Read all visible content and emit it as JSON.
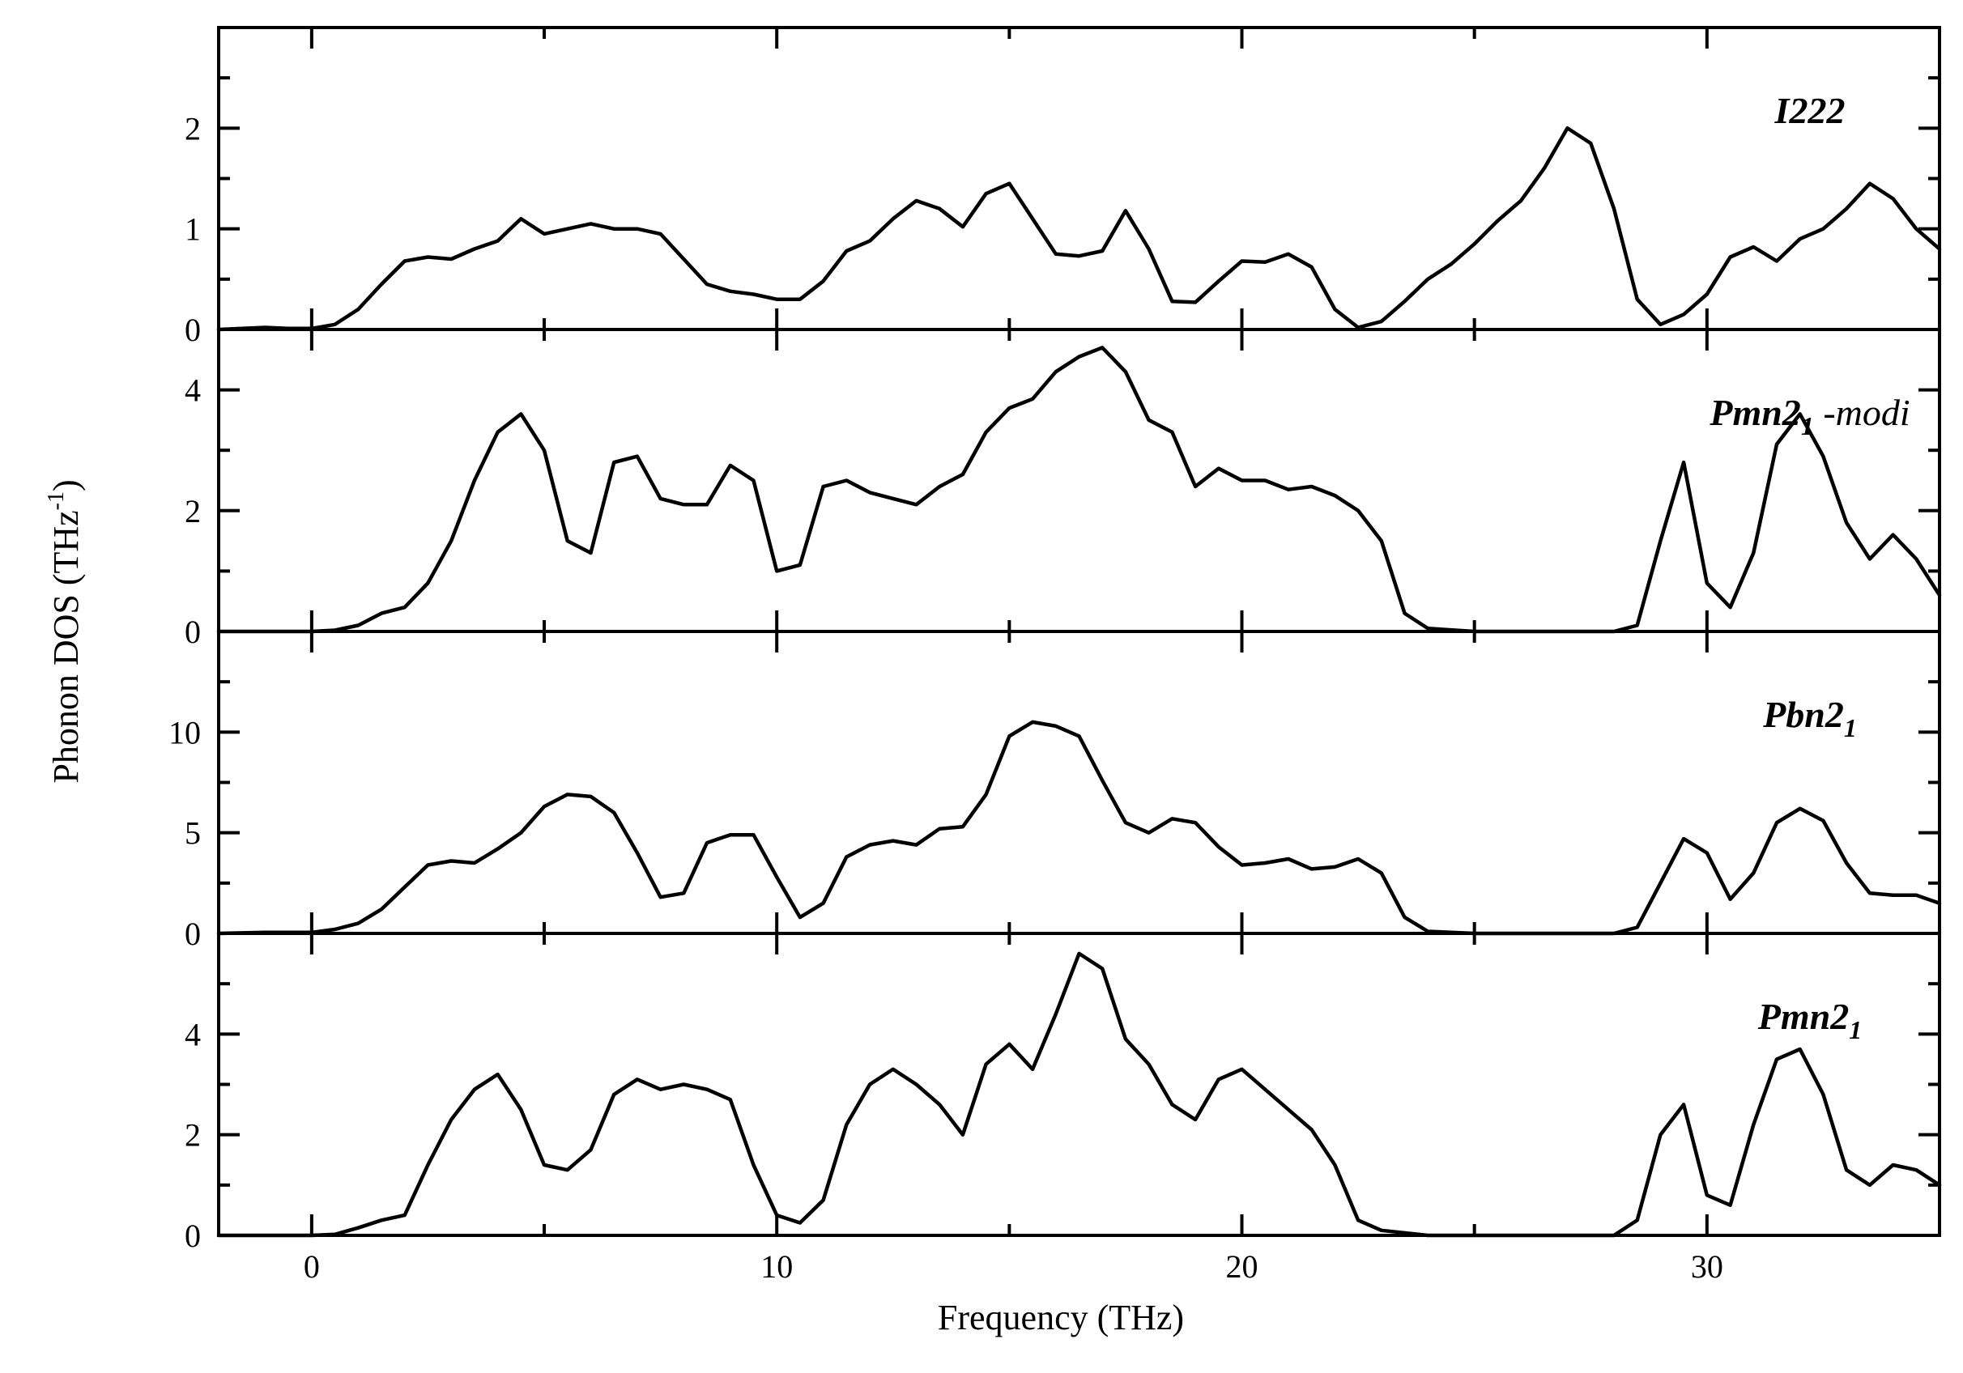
{
  "chart_data": {
    "type": "line",
    "xlabel": "Frequency (THz)",
    "ylabel_main": "Phonon DOS (THz",
    "ylabel_sup": "-1",
    "ylabel_close": ")",
    "xlim": [
      -2,
      35
    ],
    "xticks": [
      0,
      10,
      20,
      30
    ],
    "xtick_labels": [
      "0",
      "10",
      "20",
      "30"
    ],
    "panels": [
      {
        "name_main": "I222",
        "name_sub": "",
        "name_tail": "",
        "ylim": [
          0,
          3
        ],
        "yticks": [
          0,
          1,
          2
        ],
        "ytick_labels": [
          "0",
          "1",
          "2"
        ],
        "points": [
          [
            -2,
            0
          ],
          [
            -1.5,
            0.01
          ],
          [
            -1,
            0.02
          ],
          [
            -0.5,
            0.01
          ],
          [
            0,
            0.01
          ],
          [
            0.5,
            0.05
          ],
          [
            1,
            0.2
          ],
          [
            1.5,
            0.45
          ],
          [
            2,
            0.68
          ],
          [
            2.5,
            0.72
          ],
          [
            3,
            0.7
          ],
          [
            3.5,
            0.8
          ],
          [
            4,
            0.88
          ],
          [
            4.5,
            1.1
          ],
          [
            5,
            0.95
          ],
          [
            5.5,
            1.0
          ],
          [
            6,
            1.05
          ],
          [
            6.5,
            1.0
          ],
          [
            7,
            1.0
          ],
          [
            7.5,
            0.95
          ],
          [
            8,
            0.7
          ],
          [
            8.5,
            0.45
          ],
          [
            9,
            0.38
          ],
          [
            9.5,
            0.35
          ],
          [
            10,
            0.3
          ],
          [
            10.5,
            0.3
          ],
          [
            11,
            0.48
          ],
          [
            11.5,
            0.78
          ],
          [
            12,
            0.88
          ],
          [
            12.5,
            1.1
          ],
          [
            13,
            1.28
          ],
          [
            13.5,
            1.2
          ],
          [
            14,
            1.02
          ],
          [
            14.5,
            1.35
          ],
          [
            15,
            1.45
          ],
          [
            15.5,
            1.1
          ],
          [
            16,
            0.75
          ],
          [
            16.5,
            0.73
          ],
          [
            17,
            0.78
          ],
          [
            17.5,
            1.18
          ],
          [
            18,
            0.8
          ],
          [
            18.5,
            0.28
          ],
          [
            19,
            0.27
          ],
          [
            19.5,
            0.48
          ],
          [
            20,
            0.68
          ],
          [
            20.5,
            0.67
          ],
          [
            21,
            0.75
          ],
          [
            21.5,
            0.62
          ],
          [
            22,
            0.2
          ],
          [
            22.5,
            0.02
          ],
          [
            23,
            0.08
          ],
          [
            23.5,
            0.28
          ],
          [
            24,
            0.5
          ],
          [
            24.5,
            0.65
          ],
          [
            25,
            0.85
          ],
          [
            25.5,
            1.08
          ],
          [
            26,
            1.28
          ],
          [
            26.5,
            1.6
          ],
          [
            27,
            2.0
          ],
          [
            27.5,
            1.85
          ],
          [
            28,
            1.2
          ],
          [
            28.5,
            0.3
          ],
          [
            29,
            0.05
          ],
          [
            29.5,
            0.15
          ],
          [
            30,
            0.35
          ],
          [
            30.5,
            0.72
          ],
          [
            31,
            0.82
          ],
          [
            31.5,
            0.68
          ],
          [
            32,
            0.9
          ],
          [
            32.5,
            1.0
          ],
          [
            33,
            1.2
          ],
          [
            33.5,
            1.45
          ],
          [
            34,
            1.3
          ],
          [
            34.5,
            1.0
          ],
          [
            35,
            0.8
          ]
        ]
      },
      {
        "name_main": "Pmn2",
        "name_sub": "1",
        "name_tail": " -modi",
        "ylim": [
          0,
          5
        ],
        "yticks": [
          0,
          2,
          4
        ],
        "ytick_labels": [
          "0",
          "2",
          "4"
        ],
        "points": [
          [
            -2,
            0
          ],
          [
            0,
            0
          ],
          [
            0.5,
            0.02
          ],
          [
            1,
            0.1
          ],
          [
            1.5,
            0.3
          ],
          [
            2,
            0.4
          ],
          [
            2.5,
            0.8
          ],
          [
            3,
            1.5
          ],
          [
            3.5,
            2.5
          ],
          [
            4,
            3.3
          ],
          [
            4.5,
            3.6
          ],
          [
            5,
            3.0
          ],
          [
            5.5,
            1.5
          ],
          [
            6,
            1.3
          ],
          [
            6.5,
            2.8
          ],
          [
            7,
            2.9
          ],
          [
            7.5,
            2.2
          ],
          [
            8,
            2.1
          ],
          [
            8.5,
            2.1
          ],
          [
            9,
            2.75
          ],
          [
            9.5,
            2.5
          ],
          [
            10,
            1.0
          ],
          [
            10.5,
            1.1
          ],
          [
            11,
            2.4
          ],
          [
            11.5,
            2.5
          ],
          [
            12,
            2.3
          ],
          [
            12.5,
            2.2
          ],
          [
            13,
            2.1
          ],
          [
            13.5,
            2.4
          ],
          [
            14,
            2.6
          ],
          [
            14.5,
            3.3
          ],
          [
            15,
            3.7
          ],
          [
            15.5,
            3.85
          ],
          [
            16,
            4.3
          ],
          [
            16.5,
            4.55
          ],
          [
            17,
            4.7
          ],
          [
            17.5,
            4.3
          ],
          [
            18,
            3.5
          ],
          [
            18.5,
            3.3
          ],
          [
            19,
            2.4
          ],
          [
            19.5,
            2.7
          ],
          [
            20,
            2.5
          ],
          [
            20.5,
            2.5
          ],
          [
            21,
            2.35
          ],
          [
            21.5,
            2.4
          ],
          [
            22,
            2.25
          ],
          [
            22.5,
            2.0
          ],
          [
            23,
            1.5
          ],
          [
            23.5,
            0.3
          ],
          [
            24,
            0.05
          ],
          [
            25,
            0
          ],
          [
            28,
            0
          ],
          [
            28.5,
            0.1
          ],
          [
            29,
            1.5
          ],
          [
            29.5,
            2.8
          ],
          [
            30,
            0.8
          ],
          [
            30.5,
            0.4
          ],
          [
            31,
            1.3
          ],
          [
            31.5,
            3.1
          ],
          [
            32,
            3.6
          ],
          [
            32.5,
            2.9
          ],
          [
            33,
            1.8
          ],
          [
            33.5,
            1.2
          ],
          [
            34,
            1.6
          ],
          [
            34.5,
            1.2
          ],
          [
            35,
            0.6
          ]
        ]
      },
      {
        "name_main": "Pbn2",
        "name_sub": "1",
        "name_tail": "",
        "ylim": [
          0,
          15
        ],
        "yticks": [
          0,
          5,
          10
        ],
        "ytick_labels": [
          "0",
          "5",
          "10"
        ],
        "points": [
          [
            -2,
            0
          ],
          [
            -1,
            0.05
          ],
          [
            0,
            0.05
          ],
          [
            0.5,
            0.2
          ],
          [
            1,
            0.5
          ],
          [
            1.5,
            1.2
          ],
          [
            2,
            2.3
          ],
          [
            2.5,
            3.4
          ],
          [
            3,
            3.6
          ],
          [
            3.5,
            3.5
          ],
          [
            4,
            4.2
          ],
          [
            4.5,
            5.0
          ],
          [
            5,
            6.3
          ],
          [
            5.5,
            6.9
          ],
          [
            6,
            6.8
          ],
          [
            6.5,
            6.0
          ],
          [
            7,
            4.0
          ],
          [
            7.5,
            1.8
          ],
          [
            8,
            2.0
          ],
          [
            8.5,
            4.5
          ],
          [
            9,
            4.9
          ],
          [
            9.5,
            4.9
          ],
          [
            10,
            2.8
          ],
          [
            10.5,
            0.8
          ],
          [
            11,
            1.5
          ],
          [
            11.5,
            3.8
          ],
          [
            12,
            4.4
          ],
          [
            12.5,
            4.6
          ],
          [
            13,
            4.4
          ],
          [
            13.5,
            5.2
          ],
          [
            14,
            5.3
          ],
          [
            14.5,
            6.9
          ],
          [
            15,
            9.8
          ],
          [
            15.5,
            10.5
          ],
          [
            16,
            10.3
          ],
          [
            16.5,
            9.8
          ],
          [
            17,
            7.6
          ],
          [
            17.5,
            5.5
          ],
          [
            18,
            5.0
          ],
          [
            18.5,
            5.7
          ],
          [
            19,
            5.5
          ],
          [
            19.5,
            4.3
          ],
          [
            20,
            3.4
          ],
          [
            20.5,
            3.5
          ],
          [
            21,
            3.7
          ],
          [
            21.5,
            3.2
          ],
          [
            22,
            3.3
          ],
          [
            22.5,
            3.7
          ],
          [
            23,
            3.0
          ],
          [
            23.5,
            0.8
          ],
          [
            24,
            0.1
          ],
          [
            25,
            0
          ],
          [
            28,
            0
          ],
          [
            28.5,
            0.3
          ],
          [
            29,
            2.5
          ],
          [
            29.5,
            4.7
          ],
          [
            30,
            4.0
          ],
          [
            30.5,
            1.7
          ],
          [
            31,
            3.0
          ],
          [
            31.5,
            5.5
          ],
          [
            32,
            6.2
          ],
          [
            32.5,
            5.6
          ],
          [
            33,
            3.5
          ],
          [
            33.5,
            2.0
          ],
          [
            34,
            1.9
          ],
          [
            34.5,
            1.9
          ],
          [
            35,
            1.5
          ]
        ]
      },
      {
        "name_main": "Pmn2",
        "name_sub": "1",
        "name_tail": "",
        "ylim": [
          0,
          6
        ],
        "yticks": [
          0,
          2,
          4
        ],
        "ytick_labels": [
          "0",
          "2",
          "4"
        ],
        "points": [
          [
            -2,
            0
          ],
          [
            0,
            0
          ],
          [
            0.5,
            0.02
          ],
          [
            1,
            0.15
          ],
          [
            1.5,
            0.3
          ],
          [
            2,
            0.4
          ],
          [
            2.5,
            1.4
          ],
          [
            3,
            2.3
          ],
          [
            3.5,
            2.9
          ],
          [
            4,
            3.2
          ],
          [
            4.5,
            2.5
          ],
          [
            5,
            1.4
          ],
          [
            5.5,
            1.3
          ],
          [
            6,
            1.7
          ],
          [
            6.5,
            2.8
          ],
          [
            7,
            3.1
          ],
          [
            7.5,
            2.9
          ],
          [
            8,
            3.0
          ],
          [
            8.5,
            2.9
          ],
          [
            9,
            2.7
          ],
          [
            9.5,
            1.4
          ],
          [
            10,
            0.4
          ],
          [
            10.5,
            0.25
          ],
          [
            11,
            0.7
          ],
          [
            11.5,
            2.2
          ],
          [
            12,
            3.0
          ],
          [
            12.5,
            3.3
          ],
          [
            13,
            3.0
          ],
          [
            13.5,
            2.6
          ],
          [
            14,
            2.0
          ],
          [
            14.5,
            3.4
          ],
          [
            15,
            3.8
          ],
          [
            15.5,
            3.3
          ],
          [
            16,
            4.4
          ],
          [
            16.5,
            5.6
          ],
          [
            17,
            5.3
          ],
          [
            17.5,
            3.9
          ],
          [
            18,
            3.4
          ],
          [
            18.5,
            2.6
          ],
          [
            19,
            2.3
          ],
          [
            19.5,
            3.1
          ],
          [
            20,
            3.3
          ],
          [
            20.5,
            2.9
          ],
          [
            21,
            2.5
          ],
          [
            21.5,
            2.1
          ],
          [
            22,
            1.4
          ],
          [
            22.5,
            0.3
          ],
          [
            23,
            0.1
          ],
          [
            24,
            0
          ],
          [
            28,
            0
          ],
          [
            28.5,
            0.3
          ],
          [
            29,
            2.0
          ],
          [
            29.5,
            2.6
          ],
          [
            30,
            0.8
          ],
          [
            30.5,
            0.6
          ],
          [
            31,
            2.2
          ],
          [
            31.5,
            3.5
          ],
          [
            32,
            3.7
          ],
          [
            32.5,
            2.8
          ],
          [
            33,
            1.3
          ],
          [
            33.5,
            1.0
          ],
          [
            34,
            1.4
          ],
          [
            34.5,
            1.3
          ],
          [
            35,
            1.0
          ]
        ]
      }
    ]
  }
}
